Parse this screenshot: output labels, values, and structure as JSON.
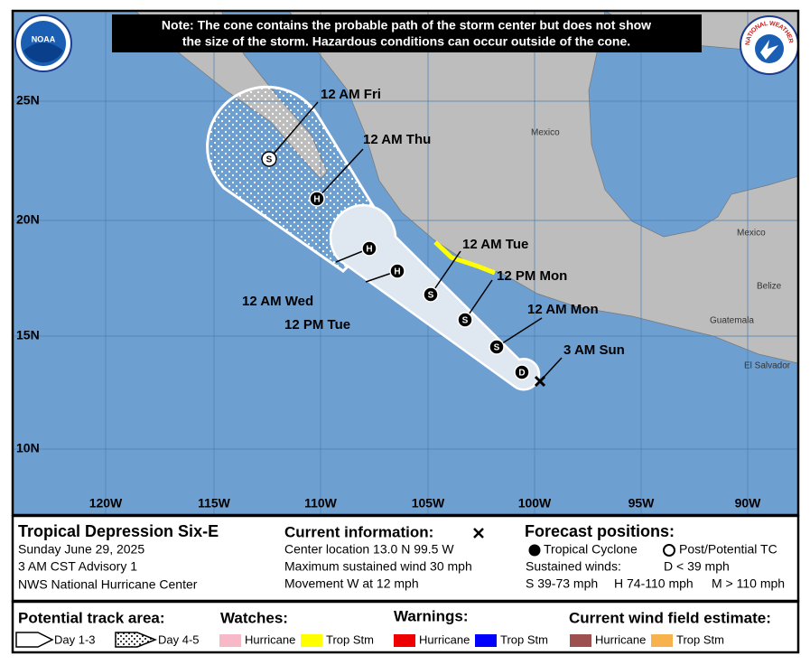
{
  "note": [
    "Note: The cone contains the probable path of the storm center but does not show",
    "the size of the storm. Hazardous conditions can occur outside of the cone."
  ],
  "logos": {
    "noaa": "NOAA",
    "nws": "NATIONAL WEATHER SERVICE"
  },
  "map": {
    "lat_labels": [
      "25N",
      "20N",
      "15N",
      "10N"
    ],
    "lon_labels": [
      "120W",
      "115W",
      "110W",
      "105W",
      "100W",
      "95W",
      "90W"
    ],
    "places": [
      "Mexico",
      "Mexico",
      "Belize",
      "Guatemala",
      "El Salvador"
    ],
    "current_label": "3 AM Sun",
    "forecast_points": [
      {
        "symbol": "D",
        "label": null,
        "fill": "black"
      },
      {
        "symbol": "S",
        "label": "12 AM Mon",
        "fill": "black"
      },
      {
        "symbol": "S",
        "label": "12 PM Mon",
        "fill": "black"
      },
      {
        "symbol": "S",
        "label": "12 AM Tue",
        "fill": "black"
      },
      {
        "symbol": "H",
        "label": "12 PM Tue",
        "fill": "black"
      },
      {
        "symbol": "H",
        "label": "12 AM Wed",
        "fill": "black"
      },
      {
        "symbol": "H",
        "label": "12 AM Thu",
        "fill": "black"
      },
      {
        "symbol": "S",
        "label": "12 AM Fri",
        "fill": "white"
      }
    ]
  },
  "info": {
    "title": "Tropical Depression Six-E",
    "date": "Sunday June 29, 2025",
    "advisory": "3 AM CST Advisory 1",
    "center": "NWS National Hurricane Center",
    "current": {
      "heading": "Current information:",
      "lines": [
        "Center location 13.0 N 99.5 W",
        "Maximum sustained wind 30 mph",
        "Movement W at 12 mph"
      ]
    },
    "forecast": {
      "heading": "Forecast positions:",
      "tc": "Tropical Cyclone",
      "post": "Post/Potential TC",
      "winds": "Sustained winds:",
      "d": "D < 39 mph",
      "s": "S 39-73 mph",
      "h": "H 74-110 mph",
      "m": "M > 110 mph"
    }
  },
  "legend": {
    "track": {
      "heading": "Potential track area:",
      "day13": "Day 1-3",
      "day45": "Day 4-5"
    },
    "watches": {
      "heading": "Watches:",
      "items": [
        {
          "name": "Hurricane",
          "color": "#f7b9c7"
        },
        {
          "name": "Trop Stm",
          "color": "#ffff00"
        }
      ]
    },
    "warnings": {
      "heading": "Warnings:",
      "items": [
        {
          "name": "Hurricane",
          "color": "#ee0000"
        },
        {
          "name": "Trop Stm",
          "color": "#0000ff"
        }
      ]
    },
    "wind": {
      "heading": "Current wind field estimate:",
      "items": [
        {
          "name": "Hurricane",
          "color": "#9e4f4f"
        },
        {
          "name": "Trop Stm",
          "color": "#f7b24d"
        }
      ]
    }
  }
}
